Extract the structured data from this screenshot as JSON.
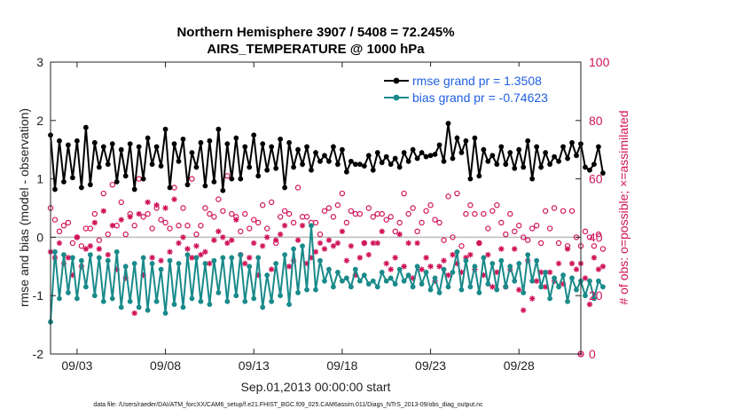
{
  "chart_data": {
    "type": "line",
    "title": [
      "Northern Hemisphere 3907 / 5408 = 72.245%",
      "AIRS_TEMPERATURE @ 1000 hPa"
    ],
    "xlabel": "Sep.01,2013 00:00:00 start",
    "ylabel_left": "rmse and bias (model - observation)",
    "ylabel_right": "# of obs: o=possible; ×=assimilated",
    "ylim_left": [
      -2,
      3
    ],
    "ylim_right": [
      0,
      100
    ],
    "xlim_days": [
      1.5,
      31.5
    ],
    "yticks_left": [
      "-2",
      "-1",
      "0",
      "1",
      "2",
      "3"
    ],
    "yticks_right": [
      "0",
      "20",
      "40",
      "60",
      "80",
      "100"
    ],
    "xticks": [
      {
        "day": 3,
        "label": "09/03"
      },
      {
        "day": 8,
        "label": "09/08"
      },
      {
        "day": 13,
        "label": "09/13"
      },
      {
        "day": 18,
        "label": "09/18"
      },
      {
        "day": 23,
        "label": "09/23"
      },
      {
        "day": 28,
        "label": "09/28"
      }
    ],
    "footnote": "data file: /Users/raeder/DAI/ATM_forcXX/CAM6_setup/f.e21.FHIST_BGC.f09_025.CAM6assim.011/Diags_NTrS_2013-09/obs_diag_output.nc",
    "legend": {
      "rmse": "rmse grand pr = 1.3508",
      "bias": "bias grand pr = -0.74623"
    },
    "colors": {
      "rmse": "#000000",
      "bias": "#1a8a8a",
      "obs": "#d0145a",
      "zero": "#bbbbbb",
      "legend_text": "#1f5fe0"
    },
    "series": [
      {
        "name": "rmse",
        "values": [
          1.75,
          0.82,
          1.65,
          0.95,
          1.58,
          1.02,
          1.65,
          0.85,
          1.88,
          0.9,
          1.62,
          1.2,
          1.55,
          1.25,
          1.6,
          0.95,
          1.5,
          1.05,
          1.6,
          0.82,
          1.55,
          1.0,
          1.7,
          1.25,
          1.55,
          1.22,
          1.85,
          0.85,
          1.6,
          1.3,
          1.68,
          0.9,
          1.45,
          1.2,
          1.62,
          0.88,
          1.65,
          0.95,
          1.85,
          0.8,
          1.6,
          1.0,
          1.7,
          1.0,
          1.55,
          1.2,
          1.75,
          1.05,
          1.6,
          1.15,
          1.55,
          1.18,
          1.68,
          0.85,
          1.62,
          1.2,
          1.5,
          1.25,
          1.55,
          1.15,
          1.45,
          1.3,
          1.4,
          1.3,
          1.55,
          1.25,
          1.5,
          1.12,
          1.3,
          1.25,
          1.25,
          1.22,
          1.4,
          1.15,
          1.45,
          1.28,
          1.38,
          1.25,
          1.35,
          1.2,
          1.45,
          1.3,
          1.5,
          1.35,
          1.45,
          1.38,
          1.4,
          1.42,
          1.58,
          1.3,
          1.95,
          1.35,
          1.7,
          1.45,
          1.65,
          1.0,
          1.7,
          1.05,
          1.5,
          1.3,
          1.4,
          1.25,
          1.55,
          1.25,
          1.45,
          1.18,
          1.5,
          1.2,
          1.65,
          1.0,
          1.55,
          1.2,
          1.45,
          1.25,
          1.38,
          1.3,
          1.55,
          1.35,
          1.62,
          1.4,
          1.6,
          1.2,
          1.15,
          1.25,
          1.55,
          1.1
        ]
      },
      {
        "name": "bias",
        "values": [
          -1.45,
          -0.25,
          -1.05,
          -0.3,
          -0.95,
          -0.35,
          -1.05,
          -0.4,
          -0.85,
          -0.3,
          -1.0,
          -0.35,
          -1.1,
          -0.4,
          -1.05,
          -0.25,
          -1.2,
          -0.5,
          -1.1,
          -0.45,
          -1.2,
          -0.35,
          -1.25,
          -0.45,
          -1.1,
          -0.55,
          -1.3,
          -0.4,
          -1.15,
          -0.45,
          -1.2,
          -0.3,
          -1.05,
          -0.35,
          -1.1,
          -0.45,
          -1.15,
          -0.4,
          -0.95,
          -0.35,
          -1.1,
          -0.35,
          -1.0,
          -0.3,
          -1.1,
          -0.5,
          -1.05,
          -0.35,
          -1.2,
          -0.65,
          -1.1,
          -0.45,
          -1.0,
          -0.3,
          -1.15,
          -0.2,
          -0.95,
          -0.15,
          -0.9,
          0.2,
          -0.9,
          -0.4,
          -0.75,
          -0.55,
          -0.85,
          -0.6,
          -0.75,
          -0.7,
          -0.85,
          -0.55,
          -0.75,
          -0.65,
          -0.8,
          -0.75,
          -0.85,
          -0.6,
          -0.75,
          -0.7,
          -0.8,
          -0.55,
          -0.75,
          -0.65,
          -0.85,
          -0.5,
          -0.8,
          -0.6,
          -0.9,
          -0.7,
          -0.95,
          -0.55,
          -0.85,
          -0.6,
          -0.25,
          -0.9,
          -0.4,
          -0.85,
          -0.5,
          -0.95,
          -0.35,
          -0.8,
          -0.45,
          -0.9,
          -0.4,
          -0.85,
          -0.5,
          -0.75,
          -0.45,
          -0.95,
          -0.3,
          -0.75,
          -0.4,
          -0.85,
          -0.6,
          -1.05,
          -0.7,
          -0.85,
          -0.65,
          -1.1,
          -0.7,
          -0.9,
          -0.75,
          -1.0,
          -0.75,
          -1.05,
          -0.75,
          -0.85
        ]
      },
      {
        "name": "obs_possible",
        "values": [
          50,
          46,
          42,
          44,
          45,
          38,
          40,
          37,
          43,
          43,
          48,
          39,
          55,
          41,
          58,
          44,
          52,
          41,
          48,
          44,
          60,
          47,
          48,
          43,
          50,
          46,
          45,
          43,
          57,
          44,
          50,
          44,
          60,
          41,
          44,
          50,
          48,
          47,
          53,
          49,
          61,
          48,
          47,
          42,
          48,
          43,
          46,
          45,
          51,
          43,
          52,
          38,
          47,
          49,
          48,
          45,
          57,
          47,
          47,
          45,
          45,
          41,
          49,
          50,
          47,
          51,
          55,
          45,
          49,
          48,
          48,
          38,
          50,
          47,
          48,
          48,
          46,
          47,
          42,
          45,
          55,
          48,
          50,
          42,
          45,
          49,
          51,
          46,
          45,
          39,
          54,
          40,
          55,
          37,
          48,
          51,
          48,
          38,
          48,
          43,
          49,
          51,
          45,
          41,
          48,
          42,
          44,
          40,
          39,
          43,
          44,
          38,
          49,
          43,
          50,
          38,
          49,
          37,
          49,
          40,
          37,
          42,
          40,
          37,
          41,
          36
        ]
      },
      {
        "name": "obs_assimilated",
        "values": [
          35,
          33,
          38,
          31,
          33,
          27,
          40,
          30,
          36,
          37,
          45,
          36,
          49,
          34,
          44,
          29,
          46,
          26,
          47,
          14,
          48,
          27,
          52,
          33,
          51,
          32,
          50,
          35,
          53,
          38,
          40,
          36,
          33,
          37,
          34,
          35,
          31,
          39,
          42,
          40,
          38,
          39,
          46,
          34,
          31,
          33,
          38,
          27,
          37,
          40,
          29,
          39,
          41,
          44,
          30,
          32,
          39,
          44,
          31,
          33,
          35,
          38,
          36,
          39,
          37,
          38,
          42,
          32,
          37,
          27,
          33,
          38,
          34,
          38,
          38,
          42,
          31,
          29,
          33,
          41,
          30,
          38,
          26,
          38,
          29,
          33,
          30,
          25,
          30,
          32,
          27,
          34,
          31,
          28,
          33,
          34,
          29,
          38,
          27,
          34,
          23,
          28,
          36,
          23,
          29,
          36,
          22,
          15,
          32,
          19,
          25,
          28,
          23,
          28,
          25,
          31,
          24,
          36,
          31,
          29,
          31,
          26,
          17,
          33,
          29,
          30
        ]
      }
    ]
  }
}
